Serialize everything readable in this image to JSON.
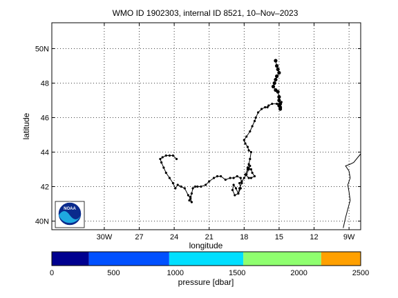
{
  "title": "WMO ID 1902303, internal ID 8521, 10–Nov–2023",
  "map": {
    "xlabel": "longitude",
    "ylabel": "latitude",
    "lon_range": [
      -34.5,
      -8.0
    ],
    "lat_range": [
      39.5,
      51.5
    ],
    "lon_ticks": [
      {
        "value": -30,
        "label": "30W"
      },
      {
        "value": -27,
        "label": "27"
      },
      {
        "value": -24,
        "label": "24"
      },
      {
        "value": -21,
        "label": "21"
      },
      {
        "value": -18,
        "label": "18"
      },
      {
        "value": -15,
        "label": "15"
      },
      {
        "value": -12,
        "label": "12"
      },
      {
        "value": -9,
        "label": "9W"
      }
    ],
    "lat_ticks": [
      {
        "value": 40,
        "label": "40N"
      },
      {
        "value": 42,
        "label": "42"
      },
      {
        "value": 44,
        "label": "44"
      },
      {
        "value": 46,
        "label": "46"
      },
      {
        "value": 48,
        "label": "48"
      },
      {
        "value": 50,
        "label": "50N"
      }
    ],
    "grid": true,
    "logo": {
      "text": "NOAA",
      "placement": "bottom-left"
    },
    "colors": {
      "track": "#000000",
      "coast": "#000000",
      "grid": "#000000"
    }
  },
  "chart_data": {
    "type": "scatter",
    "x": [
      -15.3,
      -15.2,
      -15.1,
      -15.0,
      -15.2,
      -15.3,
      -15.4,
      -15.5,
      -15.3,
      -15.1,
      -15.0,
      -15.0,
      -14.9,
      -14.9,
      -14.9,
      -15.0,
      -14.8,
      -15.2,
      -15.6,
      -15.9,
      -16.0,
      -16.2,
      -16.5,
      -16.8,
      -17.0,
      -17.1,
      -17.3,
      -17.5,
      -17.8,
      -18.0,
      -17.9,
      -17.7,
      -17.6,
      -17.4,
      -17.5,
      -17.6,
      -17.7,
      -17.4,
      -17.3,
      -17.1,
      -17.4,
      -17.6,
      -17.9,
      -17.7,
      -17.5,
      -17.6,
      -17.8,
      -18.0,
      -18.2,
      -18.4,
      -18.3,
      -18.5,
      -18.7,
      -18.9,
      -19.0,
      -18.8,
      -18.5,
      -18.4,
      -18.2,
      -18.3,
      -18.6,
      -18.9,
      -19.2,
      -19.6,
      -20.0,
      -20.3,
      -20.6,
      -21.0,
      -21.3,
      -21.7,
      -22.0,
      -22.2,
      -22.4,
      -22.5,
      -22.6,
      -22.7,
      -22.5,
      -22.6,
      -22.8,
      -23.1,
      -23.4,
      -23.7,
      -23.9,
      -24.1,
      -24.4,
      -24.7,
      -24.9,
      -25.1,
      -25.2,
      -25.0,
      -24.7,
      -24.4,
      -24.1,
      -23.8
    ],
    "y": [
      49.3,
      49.0,
      48.8,
      48.6,
      48.4,
      48.2,
      48.0,
      47.8,
      47.6,
      47.5,
      47.2,
      47.0,
      46.8,
      46.6,
      46.5,
      46.7,
      46.9,
      46.8,
      46.8,
      46.7,
      46.6,
      46.6,
      46.5,
      46.3,
      46.0,
      45.8,
      45.5,
      45.2,
      44.9,
      44.7,
      44.5,
      44.3,
      44.1,
      44.0,
      43.6,
      43.3,
      43.1,
      43.0,
      42.8,
      42.6,
      42.5,
      42.5,
      42.7,
      43.0,
      43.2,
      43.0,
      42.7,
      42.5,
      42.3,
      42.2,
      41.9,
      41.6,
      41.9,
      42.1,
      41.8,
      41.5,
      41.6,
      41.9,
      42.2,
      42.5,
      42.6,
      42.5,
      42.5,
      42.4,
      42.6,
      42.6,
      42.5,
      42.3,
      42.1,
      42.0,
      42.0,
      42.0,
      41.9,
      41.6,
      41.4,
      41.2,
      41.1,
      41.3,
      41.5,
      41.9,
      42.0,
      42.1,
      41.9,
      42.2,
      42.5,
      42.8,
      43.1,
      43.4,
      43.6,
      43.7,
      43.8,
      43.8,
      43.8,
      43.6
    ],
    "xlim": [
      -34.5,
      -8.0
    ],
    "ylim": [
      39.5,
      51.5
    ],
    "coast_x": [
      -8.0,
      -8.6,
      -8.9,
      -9.3,
      -9.0,
      -8.9,
      -9.1,
      -9.0,
      -8.9,
      -9.1,
      -9.3,
      -9.5
    ],
    "coast_y": [
      43.9,
      43.4,
      43.3,
      43.2,
      42.9,
      42.5,
      42.1,
      41.7,
      41.2,
      40.7,
      40.2,
      39.6
    ]
  },
  "colorbar": {
    "label": "pressure [dbar]",
    "range": [
      0,
      2500
    ],
    "ticks": [
      "0",
      "500",
      "1000",
      "1500",
      "2000",
      "2500"
    ],
    "bins": [
      {
        "from": 0,
        "to": 300,
        "color": "#00008f"
      },
      {
        "from": 300,
        "to": 950,
        "color": "#0050ff"
      },
      {
        "from": 950,
        "to": 1550,
        "color": "#00dfff"
      },
      {
        "from": 1550,
        "to": 2180,
        "color": "#8fff6f"
      },
      {
        "from": 2180,
        "to": 2500,
        "color": "#ffa000"
      }
    ]
  }
}
